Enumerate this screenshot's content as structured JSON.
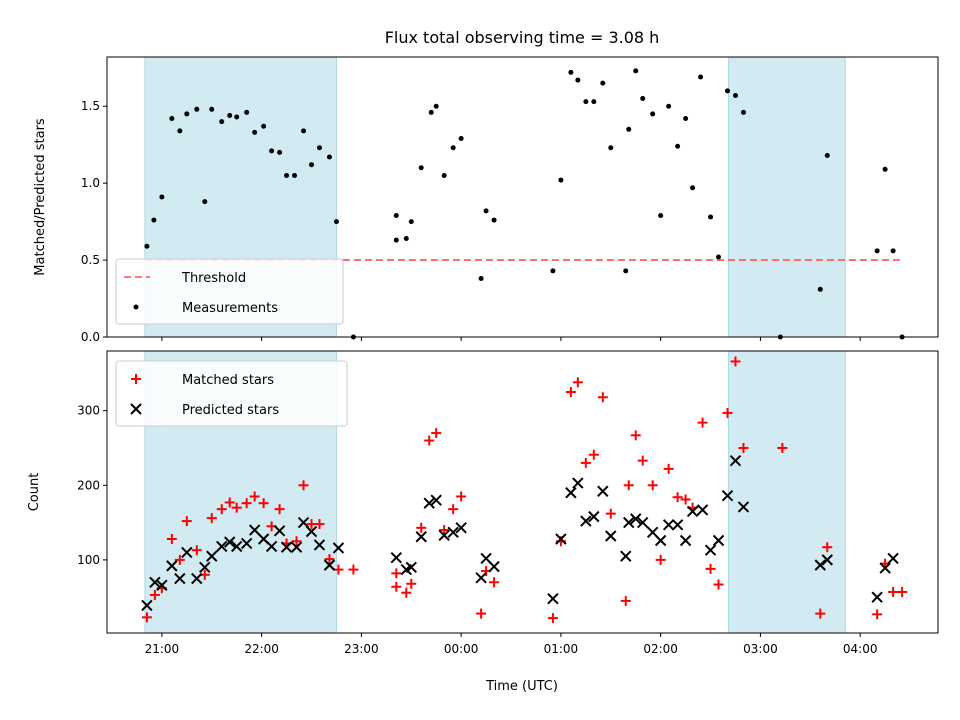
{
  "title": "Flux total observing time = 3.08 h",
  "xlabel": "Time (UTC)",
  "xticks": [
    {
      "t": 21,
      "label": "21:00"
    },
    {
      "t": 22,
      "label": "22:00"
    },
    {
      "t": 23,
      "label": "23:00"
    },
    {
      "t": 24,
      "label": "00:00"
    },
    {
      "t": 25,
      "label": "01:00"
    },
    {
      "t": 26,
      "label": "02:00"
    },
    {
      "t": 27,
      "label": "03:00"
    },
    {
      "t": 28,
      "label": "04:00"
    }
  ],
  "colors": {
    "span": "#add8e6",
    "threshold": "#ff6666",
    "matched": "#ff0000",
    "predicted": "#000000",
    "measure": "#000000"
  },
  "chart_data": [
    {
      "type": "scatter",
      "ylabel": "Matched/Predicted stars",
      "xlim": [
        20.45,
        28.78
      ],
      "ylim": [
        0,
        1.82
      ],
      "yticks": [
        {
          "v": 0,
          "label": "0.0"
        },
        {
          "v": 0.5,
          "label": "0.5"
        },
        {
          "v": 1.0,
          "label": "1.0"
        },
        {
          "v": 1.5,
          "label": "1.5"
        }
      ],
      "spans": [
        [
          20.83,
          22.75
        ],
        [
          26.68,
          27.85
        ]
      ],
      "threshold": {
        "name": "Threshold",
        "y": 0.5,
        "x": [
          20.83,
          28.42
        ]
      },
      "legend": [
        {
          "kind": "threshold",
          "label": "Threshold"
        },
        {
          "kind": "dot",
          "label": "Measurements"
        }
      ],
      "legend_loc": "lower left",
      "series": [
        {
          "name": "Measurements",
          "points": [
            [
              20.85,
              0.59
            ],
            [
              20.92,
              0.76
            ],
            [
              21.0,
              0.91
            ],
            [
              21.1,
              1.42
            ],
            [
              21.18,
              1.34
            ],
            [
              21.25,
              1.45
            ],
            [
              21.35,
              1.48
            ],
            [
              21.43,
              0.88
            ],
            [
              21.5,
              1.48
            ],
            [
              21.6,
              1.4
            ],
            [
              21.68,
              1.44
            ],
            [
              21.75,
              1.43
            ],
            [
              21.85,
              1.46
            ],
            [
              21.93,
              1.33
            ],
            [
              22.02,
              1.37
            ],
            [
              22.1,
              1.21
            ],
            [
              22.18,
              1.2
            ],
            [
              22.25,
              1.05
            ],
            [
              22.33,
              1.05
            ],
            [
              22.42,
              1.34
            ],
            [
              22.5,
              1.12
            ],
            [
              22.58,
              1.23
            ],
            [
              22.68,
              1.17
            ],
            [
              22.75,
              0.75
            ],
            [
              22.92,
              0.0
            ],
            [
              23.35,
              0.79
            ],
            [
              23.35,
              0.63
            ],
            [
              23.45,
              0.64
            ],
            [
              23.5,
              0.75
            ],
            [
              23.6,
              1.1
            ],
            [
              23.7,
              1.46
            ],
            [
              23.75,
              1.5
            ],
            [
              23.83,
              1.05
            ],
            [
              23.92,
              1.23
            ],
            [
              24.0,
              1.29
            ],
            [
              24.2,
              0.38
            ],
            [
              24.25,
              0.82
            ],
            [
              24.33,
              0.76
            ],
            [
              24.92,
              0.43
            ],
            [
              25.0,
              1.02
            ],
            [
              25.1,
              1.72
            ],
            [
              25.17,
              1.67
            ],
            [
              25.25,
              1.53
            ],
            [
              25.33,
              1.53
            ],
            [
              25.42,
              1.65
            ],
            [
              25.5,
              1.23
            ],
            [
              25.65,
              0.43
            ],
            [
              25.68,
              1.35
            ],
            [
              25.75,
              1.73
            ],
            [
              25.82,
              1.55
            ],
            [
              25.92,
              1.45
            ],
            [
              26.0,
              0.79
            ],
            [
              26.08,
              1.5
            ],
            [
              26.17,
              1.24
            ],
            [
              26.25,
              1.42
            ],
            [
              26.32,
              0.97
            ],
            [
              26.4,
              1.69
            ],
            [
              26.5,
              0.78
            ],
            [
              26.58,
              0.52
            ],
            [
              26.67,
              1.6
            ],
            [
              26.75,
              1.57
            ],
            [
              26.83,
              1.46
            ],
            [
              27.2,
              0.0
            ],
            [
              27.6,
              0.31
            ],
            [
              27.67,
              1.18
            ],
            [
              28.17,
              0.56
            ],
            [
              28.25,
              1.09
            ],
            [
              28.33,
              0.56
            ],
            [
              28.42,
              0.0
            ]
          ]
        }
      ]
    },
    {
      "type": "scatter",
      "ylabel": "Count",
      "xlim": [
        20.45,
        28.78
      ],
      "ylim": [
        2,
        380
      ],
      "yticks": [
        {
          "v": 100,
          "label": "100"
        },
        {
          "v": 200,
          "label": "200"
        },
        {
          "v": 300,
          "label": "300"
        }
      ],
      "spans": [
        [
          20.83,
          22.75
        ],
        [
          26.68,
          27.85
        ]
      ],
      "legend": [
        {
          "kind": "plus",
          "label": "Matched stars"
        },
        {
          "kind": "x",
          "label": "Predicted stars"
        }
      ],
      "legend_loc": "upper left",
      "series": [
        {
          "name": "Matched stars",
          "marker": "plus",
          "points": [
            [
              20.85,
              23
            ],
            [
              20.93,
              53
            ],
            [
              21.0,
              62
            ],
            [
              21.1,
              128
            ],
            [
              21.18,
              100
            ],
            [
              21.25,
              152
            ],
            [
              21.35,
              113
            ],
            [
              21.43,
              80
            ],
            [
              21.5,
              156
            ],
            [
              21.6,
              168
            ],
            [
              21.68,
              177
            ],
            [
              21.75,
              170
            ],
            [
              21.85,
              176
            ],
            [
              21.93,
              185
            ],
            [
              22.02,
              176
            ],
            [
              22.1,
              145
            ],
            [
              22.18,
              168
            ],
            [
              22.25,
              122
            ],
            [
              22.35,
              125
            ],
            [
              22.42,
              200
            ],
            [
              22.5,
              148
            ],
            [
              22.58,
              148
            ],
            [
              22.68,
              101
            ],
            [
              22.77,
              87
            ],
            [
              22.92,
              87
            ],
            [
              23.35,
              82
            ],
            [
              23.35,
              64
            ],
            [
              23.45,
              56
            ],
            [
              23.5,
              68
            ],
            [
              23.6,
              143
            ],
            [
              23.68,
              260
            ],
            [
              23.75,
              270
            ],
            [
              23.83,
              140
            ],
            [
              23.92,
              168
            ],
            [
              24.0,
              185
            ],
            [
              24.2,
              28
            ],
            [
              24.25,
              85
            ],
            [
              24.33,
              70
            ],
            [
              24.92,
              22
            ],
            [
              25.0,
              125
            ],
            [
              25.1,
              325
            ],
            [
              25.17,
              338
            ],
            [
              25.25,
              230
            ],
            [
              25.33,
              241
            ],
            [
              25.42,
              318
            ],
            [
              25.5,
              162
            ],
            [
              25.65,
              45
            ],
            [
              25.68,
              200
            ],
            [
              25.75,
              267
            ],
            [
              25.82,
              233
            ],
            [
              25.92,
              200
            ],
            [
              26.0,
              100
            ],
            [
              26.08,
              222
            ],
            [
              26.17,
              184
            ],
            [
              26.25,
              181
            ],
            [
              26.32,
              170
            ],
            [
              26.42,
              284
            ],
            [
              26.5,
              88
            ],
            [
              26.58,
              67
            ],
            [
              26.67,
              297
            ],
            [
              26.75,
              366
            ],
            [
              26.83,
              250
            ],
            [
              27.22,
              250
            ],
            [
              27.6,
              28
            ],
            [
              27.67,
              117
            ],
            [
              28.17,
              27
            ],
            [
              28.25,
              95
            ],
            [
              28.33,
              57
            ],
            [
              28.42,
              57
            ]
          ]
        },
        {
          "name": "Predicted stars",
          "marker": "x",
          "points": [
            [
              20.85,
              39
            ],
            [
              20.93,
              70
            ],
            [
              21.0,
              66
            ],
            [
              21.1,
              92
            ],
            [
              21.18,
              75
            ],
            [
              21.25,
              110
            ],
            [
              21.35,
              75
            ],
            [
              21.43,
              90
            ],
            [
              21.5,
              105
            ],
            [
              21.6,
              118
            ],
            [
              21.68,
              124
            ],
            [
              21.75,
              118
            ],
            [
              21.85,
              122
            ],
            [
              21.93,
              140
            ],
            [
              22.02,
              128
            ],
            [
              22.1,
              118
            ],
            [
              22.18,
              139
            ],
            [
              22.25,
              117
            ],
            [
              22.35,
              117
            ],
            [
              22.42,
              150
            ],
            [
              22.5,
              138
            ],
            [
              22.58,
              120
            ],
            [
              22.68,
              93
            ],
            [
              22.77,
              116
            ],
            [
              23.35,
              103
            ],
            [
              23.45,
              87
            ],
            [
              23.5,
              90
            ],
            [
              23.6,
              131
            ],
            [
              23.68,
              176
            ],
            [
              23.75,
              180
            ],
            [
              23.83,
              133
            ],
            [
              23.92,
              137
            ],
            [
              24.0,
              143
            ],
            [
              24.2,
              76
            ],
            [
              24.25,
              102
            ],
            [
              24.33,
              91
            ],
            [
              24.92,
              48
            ],
            [
              25.0,
              128
            ],
            [
              25.1,
              190
            ],
            [
              25.17,
              203
            ],
            [
              25.25,
              152
            ],
            [
              25.33,
              158
            ],
            [
              25.42,
              192
            ],
            [
              25.5,
              132
            ],
            [
              25.65,
              105
            ],
            [
              25.68,
              150
            ],
            [
              25.75,
              155
            ],
            [
              25.82,
              150
            ],
            [
              25.92,
              137
            ],
            [
              26.0,
              126
            ],
            [
              26.08,
              147
            ],
            [
              26.17,
              147
            ],
            [
              26.25,
              126
            ],
            [
              26.32,
              165
            ],
            [
              26.42,
              167
            ],
            [
              26.5,
              113
            ],
            [
              26.58,
              126
            ],
            [
              26.67,
              186
            ],
            [
              26.75,
              233
            ],
            [
              26.83,
              171
            ],
            [
              27.6,
              93
            ],
            [
              27.67,
              100
            ],
            [
              28.17,
              50
            ],
            [
              28.25,
              89
            ],
            [
              28.33,
              102
            ]
          ]
        }
      ]
    }
  ]
}
